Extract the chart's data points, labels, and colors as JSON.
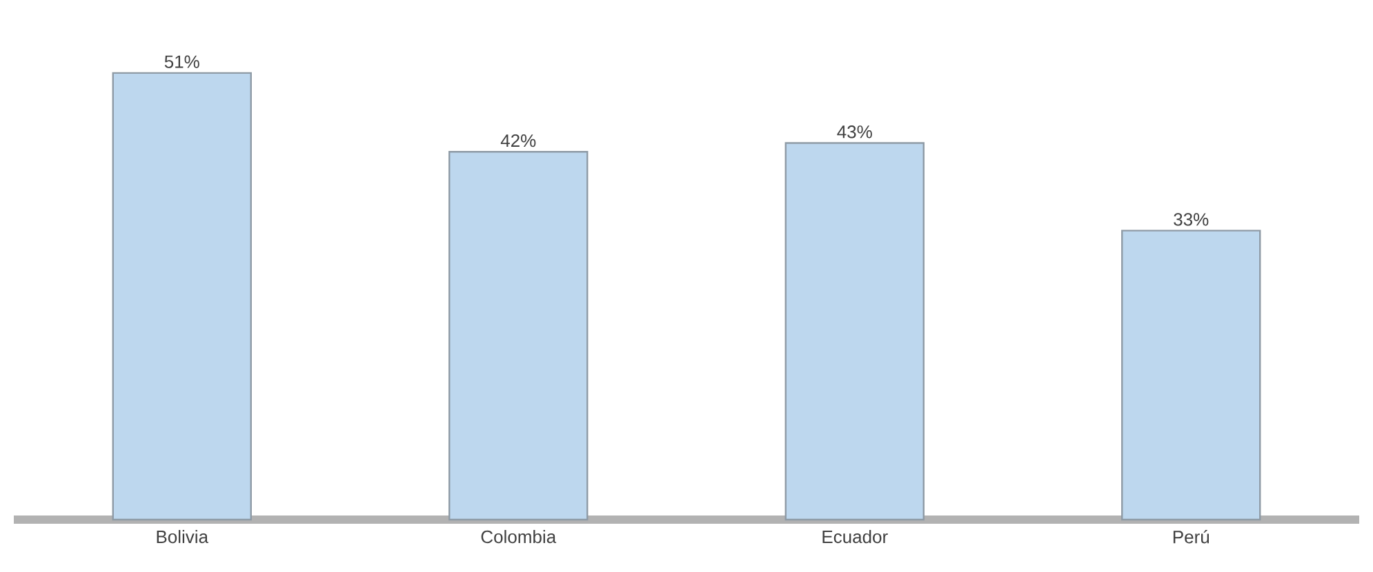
{
  "chart_data": {
    "type": "bar",
    "categories": [
      "Bolivia",
      "Colombia",
      "Ecuador",
      "Perú"
    ],
    "values": [
      51,
      42,
      43,
      33
    ],
    "value_labels": [
      "51%",
      "42%",
      "43%",
      "33%"
    ],
    "color": "#bdd7ee",
    "tick_labels": "x"
  }
}
